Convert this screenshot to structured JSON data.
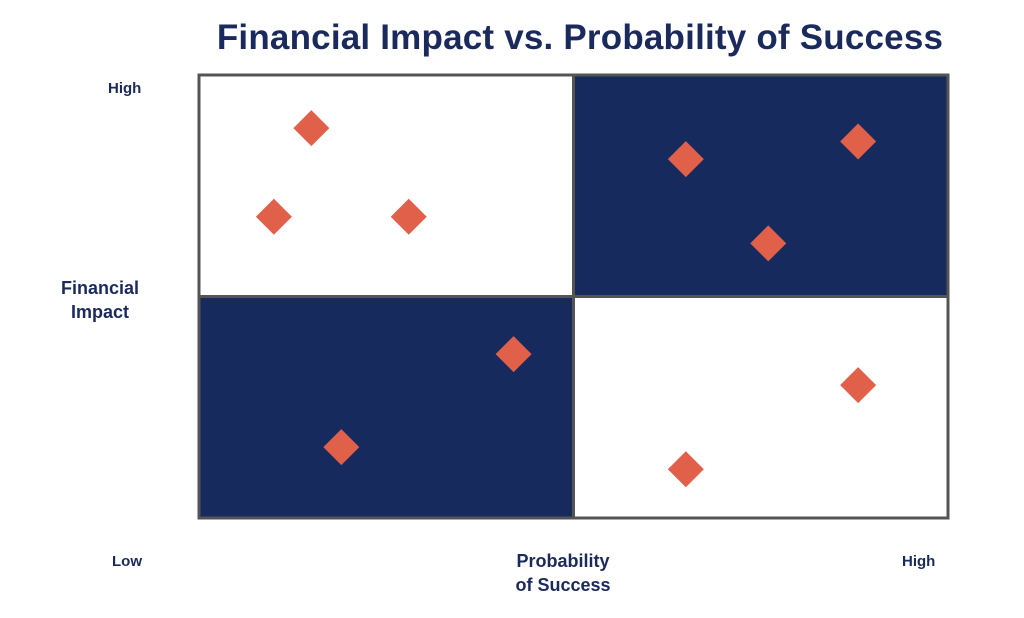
{
  "title": "Financial Impact vs. Probability of Success",
  "colors": {
    "navy": "#172a5e",
    "marker": "#e0604a",
    "border": "#545454",
    "light": "#ffffff"
  },
  "axes": {
    "y_title_lines": [
      "Financial",
      "Impact"
    ],
    "x_title_lines": [
      "Probability",
      "of Success"
    ],
    "y_high": "High",
    "low": "Low",
    "x_high": "High"
  },
  "chart_data": {
    "type": "scatter",
    "title": "Financial Impact vs. Probability of Success",
    "xlabel": "Probability of Success",
    "ylabel": "Financial Impact",
    "xlim": [
      0,
      10
    ],
    "ylim": [
      0,
      10
    ],
    "quadrant_split": {
      "x": 5,
      "y": 5
    },
    "quadrant_fill": {
      "top_left": "light",
      "top_right": "navy",
      "bottom_left": "navy",
      "bottom_right": "light"
    },
    "marker_shape": "diamond",
    "grid": false,
    "legend": "none",
    "points": [
      {
        "x": 1.5,
        "y": 8.8
      },
      {
        "x": 1.0,
        "y": 6.8
      },
      {
        "x": 2.8,
        "y": 6.8
      },
      {
        "x": 6.5,
        "y": 8.1
      },
      {
        "x": 8.8,
        "y": 8.5
      },
      {
        "x": 7.6,
        "y": 6.2
      },
      {
        "x": 4.2,
        "y": 3.7
      },
      {
        "x": 1.9,
        "y": 1.6
      },
      {
        "x": 8.8,
        "y": 3.0
      },
      {
        "x": 6.5,
        "y": 1.1
      }
    ]
  }
}
